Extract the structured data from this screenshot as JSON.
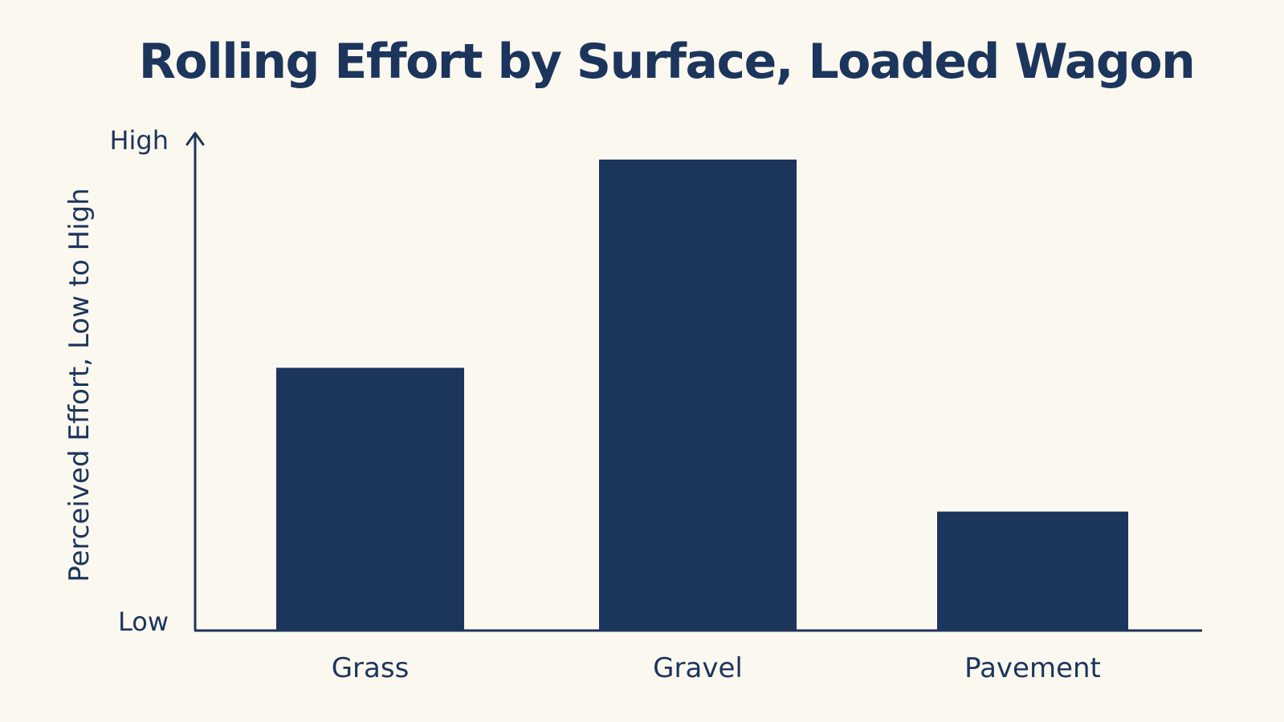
{
  "chart_data": {
    "type": "bar",
    "title": "Rolling Effort by Surface, Loaded Wagon",
    "xlabel": "",
    "ylabel": "Perceived Effort, Low to High",
    "categories": [
      "Grass",
      "Gravel",
      "Pavement"
    ],
    "values": [
      0.53,
      0.95,
      0.24
    ],
    "ylim": [
      0,
      1
    ],
    "y_tick_labels": {
      "low": "Low",
      "high": "High"
    },
    "grid": false,
    "legend": "none",
    "bar_color": "#1c355c",
    "axis_color": "#1c355c",
    "background_color": "#fbf8ef"
  }
}
